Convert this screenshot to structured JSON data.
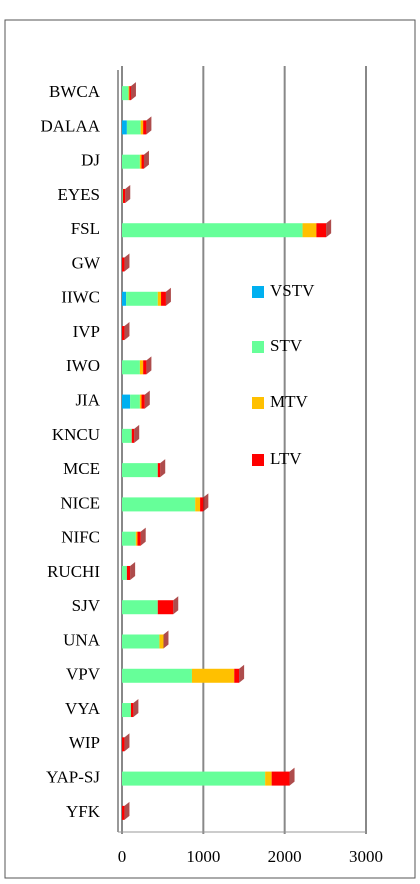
{
  "chart_data": {
    "type": "stacked-bar-horizontal",
    "categories": [
      "BWCA",
      "DALAA",
      "DJ",
      "EYES",
      "FSL",
      "GW",
      "IIWC",
      "IVP",
      "IWO",
      "JIA",
      "KNCU",
      "MCE",
      "NICE",
      "NIFC",
      "RUCHI",
      "SJV",
      "UNA",
      "VPV",
      "VYA",
      "WIP",
      "YAP-SJ",
      "YFK"
    ],
    "series": [
      {
        "name": "VSTV",
        "color": "#00b0f0",
        "values": [
          0,
          60,
          0,
          0,
          0,
          0,
          50,
          0,
          0,
          100,
          0,
          0,
          0,
          0,
          0,
          0,
          0,
          0,
          0,
          0,
          0,
          0
        ]
      },
      {
        "name": "STV",
        "color": "#66ff99",
        "values": [
          80,
          170,
          220,
          10,
          2220,
          0,
          390,
          0,
          220,
          120,
          120,
          440,
          900,
          170,
          60,
          440,
          460,
          860,
          110,
          0,
          1760,
          0
        ]
      },
      {
        "name": "MTV",
        "color": "#ffc000",
        "values": [
          10,
          30,
          20,
          0,
          170,
          0,
          40,
          0,
          40,
          20,
          0,
          0,
          60,
          20,
          0,
          0,
          50,
          520,
          0,
          0,
          80,
          0
        ]
      },
      {
        "name": "LTV",
        "color": "#ff0000",
        "values": [
          20,
          40,
          30,
          30,
          120,
          30,
          60,
          30,
          40,
          40,
          30,
          30,
          40,
          40,
          40,
          190,
          0,
          60,
          30,
          30,
          220,
          30
        ]
      }
    ],
    "xlim": [
      0,
      3000
    ],
    "xticks": [
      0,
      1000,
      2000,
      3000
    ],
    "grid": true,
    "legend": "right"
  }
}
